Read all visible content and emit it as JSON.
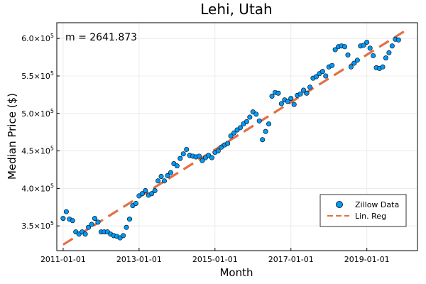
{
  "chart_data": {
    "type": "scatter",
    "title": "Lehi, Utah",
    "xlabel": "Month",
    "ylabel": "Median Price ($)",
    "annotation": "m = 2641.873",
    "xlim": [
      "2010-11-01",
      "2020-05-01"
    ],
    "ylim": [
      317000,
      621000
    ],
    "x_ticks": [
      "2011-01-01",
      "2013-01-01",
      "2015-01-01",
      "2017-01-01",
      "2019-01-01"
    ],
    "y_ticks": [
      {
        "value": 350000,
        "mantissa": "3.5",
        "exp": "5"
      },
      {
        "value": 400000,
        "mantissa": "4.0",
        "exp": "5"
      },
      {
        "value": 450000,
        "mantissa": "4.5",
        "exp": "5"
      },
      {
        "value": 500000,
        "mantissa": "5.0",
        "exp": "5"
      },
      {
        "value": 550000,
        "mantissa": "5.5",
        "exp": "5"
      },
      {
        "value": 600000,
        "mantissa": "6.0",
        "exp": "5"
      }
    ],
    "y_tick_base": "×10",
    "grid": true,
    "legend_position": "bottom-right",
    "series": [
      {
        "name": "Zillow Data",
        "type": "scatter",
        "color": "#009AFA",
        "start": "2011-01-01",
        "values": [
          360000,
          369000,
          359000,
          357000,
          342000,
          339000,
          342000,
          339000,
          348000,
          352000,
          360000,
          355000,
          342000,
          342000,
          342000,
          339000,
          337000,
          336000,
          334000,
          337000,
          348000,
          359000,
          377000,
          380000,
          390000,
          393000,
          397000,
          391000,
          393000,
          397000,
          410000,
          416000,
          410000,
          417000,
          421000,
          433000,
          430000,
          440000,
          446000,
          452000,
          444000,
          443000,
          442000,
          443000,
          437000,
          441000,
          444000,
          441000,
          448000,
          450000,
          455000,
          458000,
          460000,
          470000,
          474000,
          478000,
          481000,
          486000,
          489000,
          495000,
          502000,
          499000,
          490000,
          465000,
          476000,
          486000,
          523000,
          528000,
          527000,
          513000,
          518000,
          516000,
          520000,
          512000,
          524000,
          526000,
          531000,
          527000,
          535000,
          547000,
          549000,
          553000,
          556000,
          550000,
          562000,
          564000,
          585000,
          589000,
          590000,
          589000,
          578000,
          562000,
          567000,
          571000,
          590000,
          591000,
          595000,
          587000,
          577000,
          561000,
          560000,
          562000,
          574000,
          581000,
          590000,
          599000,
          598000
        ]
      },
      {
        "name": "Lin. Reg",
        "type": "line",
        "style": "dashed",
        "color": "#E26F46",
        "x": [
          "2011-01-01",
          "2020-01-01"
        ],
        "values": [
          325000,
          610000
        ]
      }
    ]
  }
}
